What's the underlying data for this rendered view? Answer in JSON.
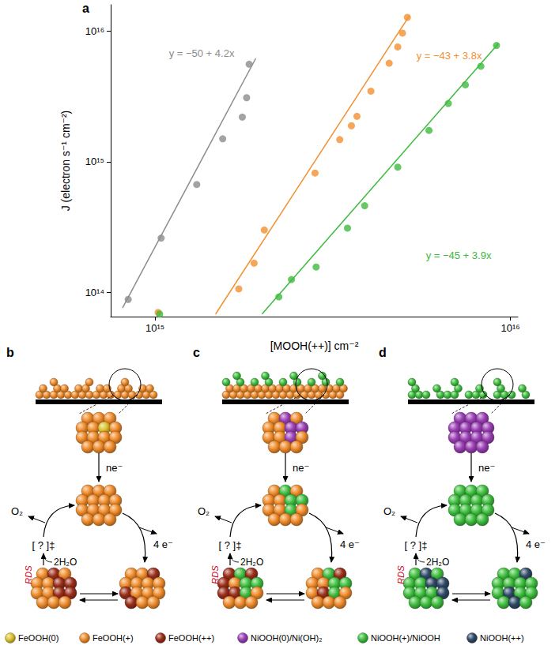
{
  "chart_data": {
    "type": "scatter",
    "xlabel": "[MOOH(++)] cm⁻²",
    "ylabel": "J (electron s⁻¹ cm⁻²)",
    "log": true,
    "grid": false,
    "xlim": [
      750000000000000.0,
      1.05e+16
    ],
    "ylim": [
      65000000000000.0,
      1.6e+16
    ],
    "xticks": [
      {
        "value": 1000000000000000.0,
        "label": "10¹⁵"
      },
      {
        "value": 1e+16,
        "label": "10¹⁶"
      }
    ],
    "yticks": [
      {
        "value": 100000000000000.0,
        "label": "10¹⁴"
      },
      {
        "value": 1000000000000000.0,
        "label": "10¹⁵"
      },
      {
        "value": 1e+16,
        "label": "10¹⁶"
      }
    ],
    "series": [
      {
        "color": "#8c8c8c",
        "x": [
          840000000000000.0,
          1040000000000000.0,
          1310000000000000.0,
          1550000000000000.0,
          1760000000000000.0,
          1810000000000000.0,
          1840000000000000.0
        ],
        "values": [
          88000000000000.0,
          260000000000000.0,
          670000000000000.0,
          1500000000000000.0,
          2200000000000000.0,
          3100000000000000.0,
          5600000000000000.0
        ],
        "fit": {
          "x": [
            810000000000000.0,
            1920000000000000.0
          ],
          "y": [
            76000000000000.0,
            6200000000000000.0
          ],
          "label": "y = −50 + 4.2x"
        }
      },
      {
        "color": "#f39030",
        "x": [
          1020000000000000.0,
          1720000000000000.0,
          1900000000000000.0,
          2030000000000000.0,
          2820000000000000.0,
          3310000000000000.0,
          3570000000000000.0,
          3700000000000000.0,
          4050000000000000.0,
          4560000000000000.0,
          4820000000000000.0,
          4970000000000000.0,
          5130000000000000.0
        ],
        "values": [
          70000000000000.0,
          106000000000000.0,
          167000000000000.0,
          300000000000000.0,
          820000000000000.0,
          1480000000000000.0,
          1890000000000000.0,
          2230000000000000.0,
          3480000000000000.0,
          5700000000000000.0,
          7600000000000000.0,
          9700000000000000.0,
          1.28e+16
        ],
        "fit": {
          "x": [
            1480000000000000.0,
            5200000000000000.0
          ],
          "y": [
            68000000000000.0,
            1.32e+16
          ],
          "label": "y = −43 + 3.8x"
        }
      },
      {
        "color": "#3dba3d",
        "x": [
          1030000000000000.0,
          2230000000000000.0,
          2420000000000000.0,
          2840000000000000.0,
          3480000000000000.0,
          3890000000000000.0,
          4820000000000000.0,
          5900000000000000.0,
          6690000000000000.0,
          7470000000000000.0,
          8260000000000000.0,
          9140000000000000.0
        ],
        "values": [
          68000000000000.0,
          92000000000000.0,
          125000000000000.0,
          156000000000000.0,
          310000000000000.0,
          460000000000000.0,
          910000000000000.0,
          1740000000000000.0,
          2800000000000000.0,
          3890000000000000.0,
          5400000000000000.0,
          7800000000000000.0
        ],
        "fit": {
          "x": [
            2000000000000000.0,
            9270000000000000.0
          ],
          "y": [
            68000000000000.0,
            8100000000000000.0
          ],
          "label": "y = −45 + 3.9x"
        }
      }
    ]
  },
  "diagram": {
    "panel_labels": [
      "a",
      "b",
      "c",
      "d"
    ],
    "panels": [
      {
        "label": "b",
        "electrons_in": "ne⁻",
        "electrons_out": "4 e⁻",
        "reactant": "2H₂O",
        "product": "O₂",
        "transition_state": "[ ? ]‡",
        "rds": "RDS"
      },
      {
        "label": "c",
        "electrons_in": "ne⁻",
        "electrons_out": "4 e⁻",
        "reactant": "2H₂O",
        "product": "O₂",
        "transition_state": "[ ? ]‡",
        "rds": "RDS"
      },
      {
        "label": "d",
        "electrons_in": "ne⁻",
        "electrons_out": "4 e⁻",
        "reactant": "2H₂O",
        "product": "O₂",
        "transition_state": "[ ? ]‡",
        "rds": "RDS"
      }
    ],
    "legend": [
      {
        "label": "FeOOH(0)",
        "color": "#dcc22e"
      },
      {
        "label": "FeOOH(+)",
        "color": "#f08c2c"
      },
      {
        "label": "FeOOH(++)",
        "color": "#9b2e1a"
      },
      {
        "label": "NiOOH(0)/Ni(OH)₂",
        "color": "#9b3fb5"
      },
      {
        "label": "NiOOH(+)/NiOOH",
        "color": "#3fbf3f"
      },
      {
        "label": "NiOOH(++)",
        "color": "#2f4a66"
      }
    ]
  }
}
